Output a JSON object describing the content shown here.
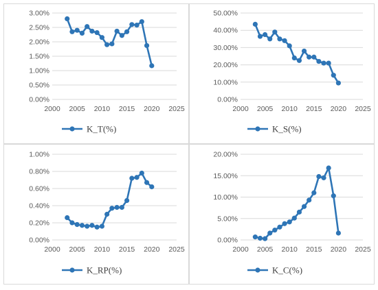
{
  "chart_data": [
    {
      "type": "line",
      "legend": "K_T(%)",
      "legend_position": "bottom",
      "x": [
        2003,
        2004,
        2005,
        2006,
        2007,
        2008,
        2009,
        2010,
        2011,
        2012,
        2013,
        2014,
        2015,
        2016,
        2017,
        2018,
        2019,
        2020
      ],
      "values": [
        2.8,
        2.35,
        2.4,
        2.3,
        2.53,
        2.37,
        2.32,
        2.15,
        1.9,
        1.93,
        2.37,
        2.22,
        2.35,
        2.6,
        2.58,
        2.7,
        1.87,
        1.17
      ],
      "xlim": [
        2000,
        2025
      ],
      "xticks": [
        "2000",
        "2005",
        "2010",
        "2015",
        "2020",
        "2025"
      ],
      "ylim": [
        0,
        3
      ],
      "yticks": [
        "0.00%",
        "0.50%",
        "1.00%",
        "1.50%",
        "2.00%",
        "2.50%",
        "3.00%"
      ],
      "grid": true,
      "color": "#2e75b6"
    },
    {
      "type": "line",
      "legend": "K_S(%)",
      "legend_position": "bottom",
      "x": [
        2003,
        2004,
        2005,
        2006,
        2007,
        2008,
        2009,
        2010,
        2011,
        2012,
        2013,
        2014,
        2015,
        2016,
        2017,
        2018,
        2019,
        2020
      ],
      "values": [
        43.5,
        36.5,
        37.5,
        35.0,
        39.0,
        35.0,
        34.0,
        31.0,
        24.0,
        22.5,
        28.0,
        24.5,
        24.5,
        22.0,
        21.0,
        21.0,
        14.0,
        9.5
      ],
      "xlim": [
        2000,
        2025
      ],
      "xticks": [
        "2000",
        "2005",
        "2010",
        "2015",
        "2020",
        "2025"
      ],
      "ylim": [
        0,
        50
      ],
      "yticks": [
        "0.00%",
        "10.00%",
        "20.00%",
        "30.00%",
        "40.00%",
        "50.00%"
      ],
      "grid": true,
      "color": "#2e75b6"
    },
    {
      "type": "line",
      "legend": "K_RP(%)",
      "legend_position": "bottom",
      "x": [
        2003,
        2004,
        2005,
        2006,
        2007,
        2008,
        2009,
        2010,
        2011,
        2012,
        2013,
        2014,
        2015,
        2016,
        2017,
        2018,
        2019,
        2020
      ],
      "values": [
        0.26,
        0.2,
        0.18,
        0.17,
        0.16,
        0.17,
        0.15,
        0.16,
        0.3,
        0.37,
        0.38,
        0.38,
        0.46,
        0.72,
        0.73,
        0.78,
        0.67,
        0.62
      ],
      "xlim": [
        2000,
        2025
      ],
      "xticks": [
        "2000",
        "2005",
        "2010",
        "2015",
        "2020",
        "2025"
      ],
      "ylim": [
        0,
        1
      ],
      "yticks": [
        "0.00%",
        "0.20%",
        "0.40%",
        "0.60%",
        "0.80%",
        "1.00%"
      ],
      "grid": true,
      "color": "#2e75b6"
    },
    {
      "type": "line",
      "legend": "K_C(%)",
      "legend_position": "bottom",
      "x": [
        2003,
        2004,
        2005,
        2006,
        2007,
        2008,
        2009,
        2010,
        2011,
        2012,
        2013,
        2014,
        2015,
        2016,
        2017,
        2018,
        2019,
        2020
      ],
      "values": [
        0.7,
        0.4,
        0.3,
        1.6,
        2.3,
        3.0,
        3.8,
        4.2,
        5.1,
        6.5,
        7.8,
        9.3,
        11.0,
        14.8,
        14.5,
        16.8,
        10.3,
        1.6
      ],
      "xlim": [
        2000,
        2025
      ],
      "xticks": [
        "2000",
        "2005",
        "2010",
        "2015",
        "2020",
        "2025"
      ],
      "ylim": [
        0,
        20
      ],
      "yticks": [
        "0.00%",
        "5.00%",
        "10.00%",
        "15.00%",
        "20.00%"
      ],
      "grid": true,
      "color": "#2e75b6"
    }
  ]
}
